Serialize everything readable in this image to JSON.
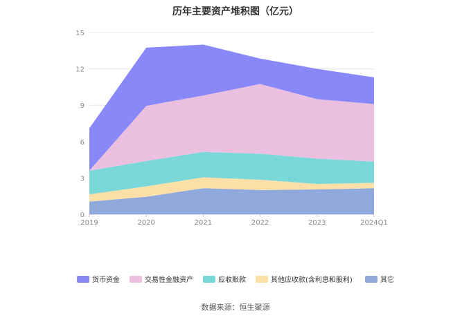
{
  "chart_data": {
    "type": "area",
    "stacked": true,
    "title": "历年主要资产堆积图（亿元）",
    "categories": [
      "2019",
      "2020",
      "2021",
      "2022",
      "2023",
      "2024Q1"
    ],
    "ylim": [
      0,
      15
    ],
    "yticks": [
      0,
      3,
      6,
      9,
      12,
      15
    ],
    "grid": true,
    "legend_position": "bottom",
    "series": [
      {
        "name": "其它",
        "color": "#8fa9dc",
        "values": [
          1.05,
          1.45,
          2.15,
          2.0,
          2.05,
          2.15
        ]
      },
      {
        "name": "其他应收款(含利息和股利)",
        "color": "#fde0a8",
        "values": [
          0.6,
          0.85,
          0.9,
          0.85,
          0.45,
          0.45
        ]
      },
      {
        "name": "应收账款",
        "color": "#7ad8d8",
        "values": [
          1.95,
          2.1,
          2.1,
          2.15,
          2.1,
          1.75
        ]
      },
      {
        "name": "交易性金融资产",
        "color": "#ebbfe0",
        "values": [
          0.0,
          4.55,
          4.65,
          5.75,
          4.9,
          4.75
        ]
      },
      {
        "name": "货币资金",
        "color": "#8888f8",
        "values": [
          3.5,
          4.8,
          4.2,
          2.1,
          2.5,
          2.2
        ]
      }
    ],
    "legend_order": [
      "货币资金",
      "交易性金融资产",
      "应收账款",
      "其他应收款(含利息和股利)",
      "其它"
    ]
  },
  "source": "数据来源：恒生聚源"
}
